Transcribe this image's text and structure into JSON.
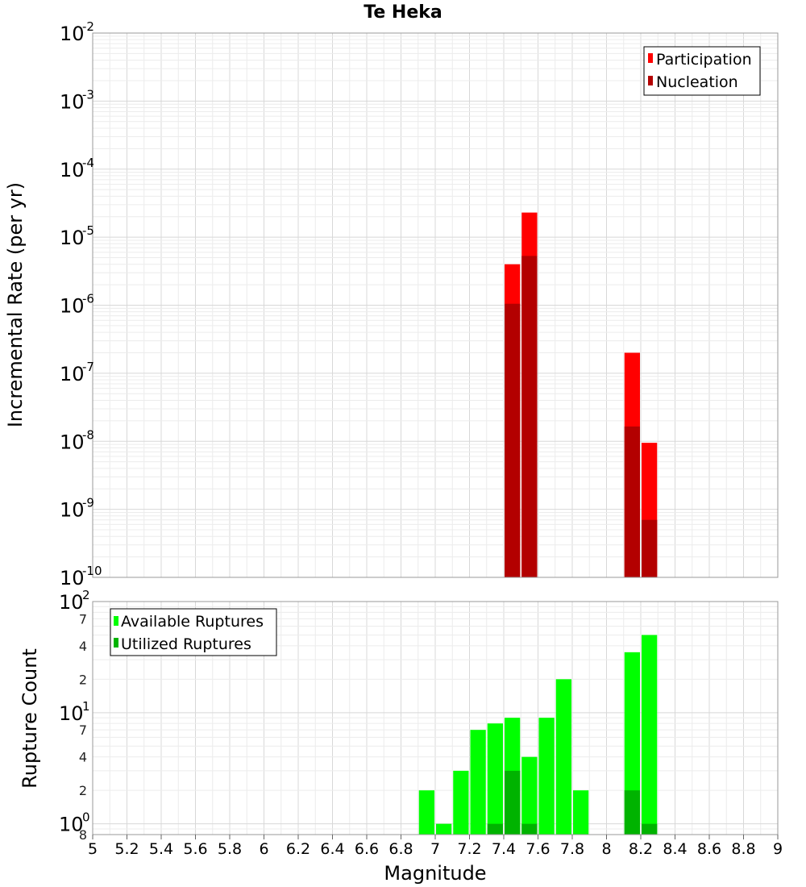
{
  "chart_data": [
    {
      "type": "bar",
      "title": "Te Heka",
      "xlabel": "",
      "ylabel": "Incremental Rate (per yr)",
      "yscale": "log",
      "ylim": [
        1e-10,
        0.01
      ],
      "xlim": [
        5,
        9
      ],
      "grid": true,
      "legend_position": "top-right",
      "y_tick_labels": [
        "10^-10",
        "10^-9",
        "10^-8",
        "10^-7",
        "10^-6",
        "10^-5",
        "10^-4",
        "10^-3",
        "10^-2"
      ],
      "x": [
        7.45,
        7.55,
        8.15,
        8.25
      ],
      "series": [
        {
          "name": "Participation",
          "color": "#ff0000",
          "values": [
            4e-06,
            2.3e-05,
            2e-07,
            9.5e-09
          ]
        },
        {
          "name": "Nucleation",
          "color": "#b30000",
          "values": [
            1.05e-06,
            5.3e-06,
            1.65e-08,
            7e-10
          ]
        }
      ]
    },
    {
      "type": "bar",
      "title": "",
      "xlabel": "Magnitude",
      "ylabel": "Rupture Count",
      "yscale": "log",
      "ylim": [
        0.8,
        100
      ],
      "xlim": [
        5,
        9
      ],
      "grid": true,
      "legend_position": "top-left",
      "x_tick_labels": [
        "5",
        "5.2",
        "5.4",
        "5.6",
        "5.8",
        "6",
        "6.2",
        "6.4",
        "6.6",
        "6.8",
        "7",
        "7.2",
        "7.4",
        "7.6",
        "7.8",
        "8",
        "8.2",
        "8.4",
        "8.6",
        "8.8",
        "9"
      ],
      "x": [
        6.95,
        7.05,
        7.15,
        7.25,
        7.35,
        7.45,
        7.55,
        7.65,
        7.75,
        7.85,
        8.15,
        8.25
      ],
      "series": [
        {
          "name": "Available Ruptures",
          "color": "#00ff00",
          "values": [
            2,
            1,
            3,
            7,
            8,
            9,
            4,
            9,
            20,
            2,
            35,
            50
          ]
        },
        {
          "name": "Utilized Ruptures",
          "color": "#00b300",
          "values": [
            0,
            0,
            0,
            0,
            1,
            3,
            1,
            0,
            0,
            0,
            2,
            1
          ]
        }
      ]
    }
  ]
}
